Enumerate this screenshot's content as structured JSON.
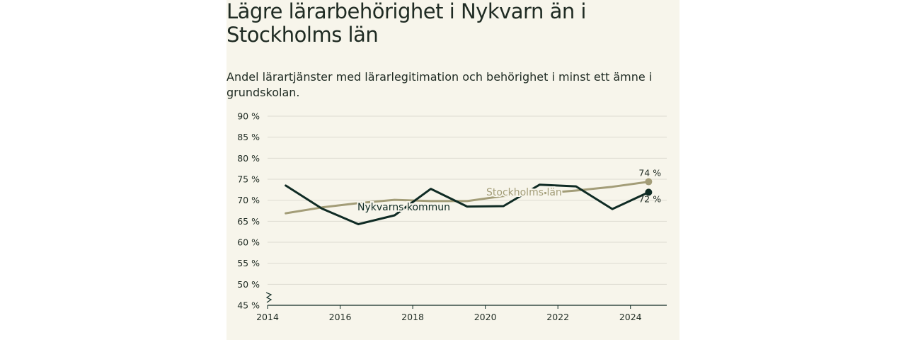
{
  "title": "Lägre lärarbehörighet i Nykvarn än i Stockholms län",
  "subtitle": "Andel lärartjänster med lärarlegitimation och behörighet i minst ett ämne i grundskolan.",
  "colors": {
    "background": "#f7f5eb",
    "nykvarn": "#0f2b24",
    "stockholm": "#a39d78",
    "grid": "#dddbd0",
    "text": "#1f2b23"
  },
  "chart_data": {
    "type": "line",
    "x_ticks": [
      2014,
      2016,
      2018,
      2020,
      2022,
      2024
    ],
    "y_ticks": [
      "45 %",
      "50 %",
      "55 %",
      "60 %",
      "65 %",
      "70 %",
      "75 %",
      "80 %",
      "85 %",
      "90 %"
    ],
    "y_tick_values": [
      45,
      50,
      55,
      60,
      65,
      70,
      75,
      80,
      85,
      90
    ],
    "xlim": [
      2014,
      2025
    ],
    "ylim": [
      45,
      90
    ],
    "y_axis_break": true,
    "grid": true,
    "series": [
      {
        "name": "Nykvarns kommun",
        "color": "#0f2b24",
        "x": [
          2014.5,
          2015.5,
          2016.5,
          2017.5,
          2018.5,
          2019.5,
          2020.5,
          2021.5,
          2022.5,
          2023.5,
          2024.5
        ],
        "y": [
          73.5,
          68.0,
          64.3,
          66.4,
          72.7,
          68.5,
          68.6,
          73.7,
          73.3,
          67.9,
          71.9
        ],
        "end_label": "72 %"
      },
      {
        "name": "Stockholms län",
        "color": "#a39d78",
        "x": [
          2014.5,
          2015.5,
          2016.5,
          2017.5,
          2018.5,
          2019.5,
          2020.5,
          2021.5,
          2022.5,
          2023.5,
          2024.5
        ],
        "y": [
          66.9,
          68.3,
          69.3,
          70.1,
          69.8,
          69.8,
          71.0,
          71.6,
          72.3,
          73.2,
          74.4
        ],
        "end_label": "74 %"
      }
    ]
  }
}
